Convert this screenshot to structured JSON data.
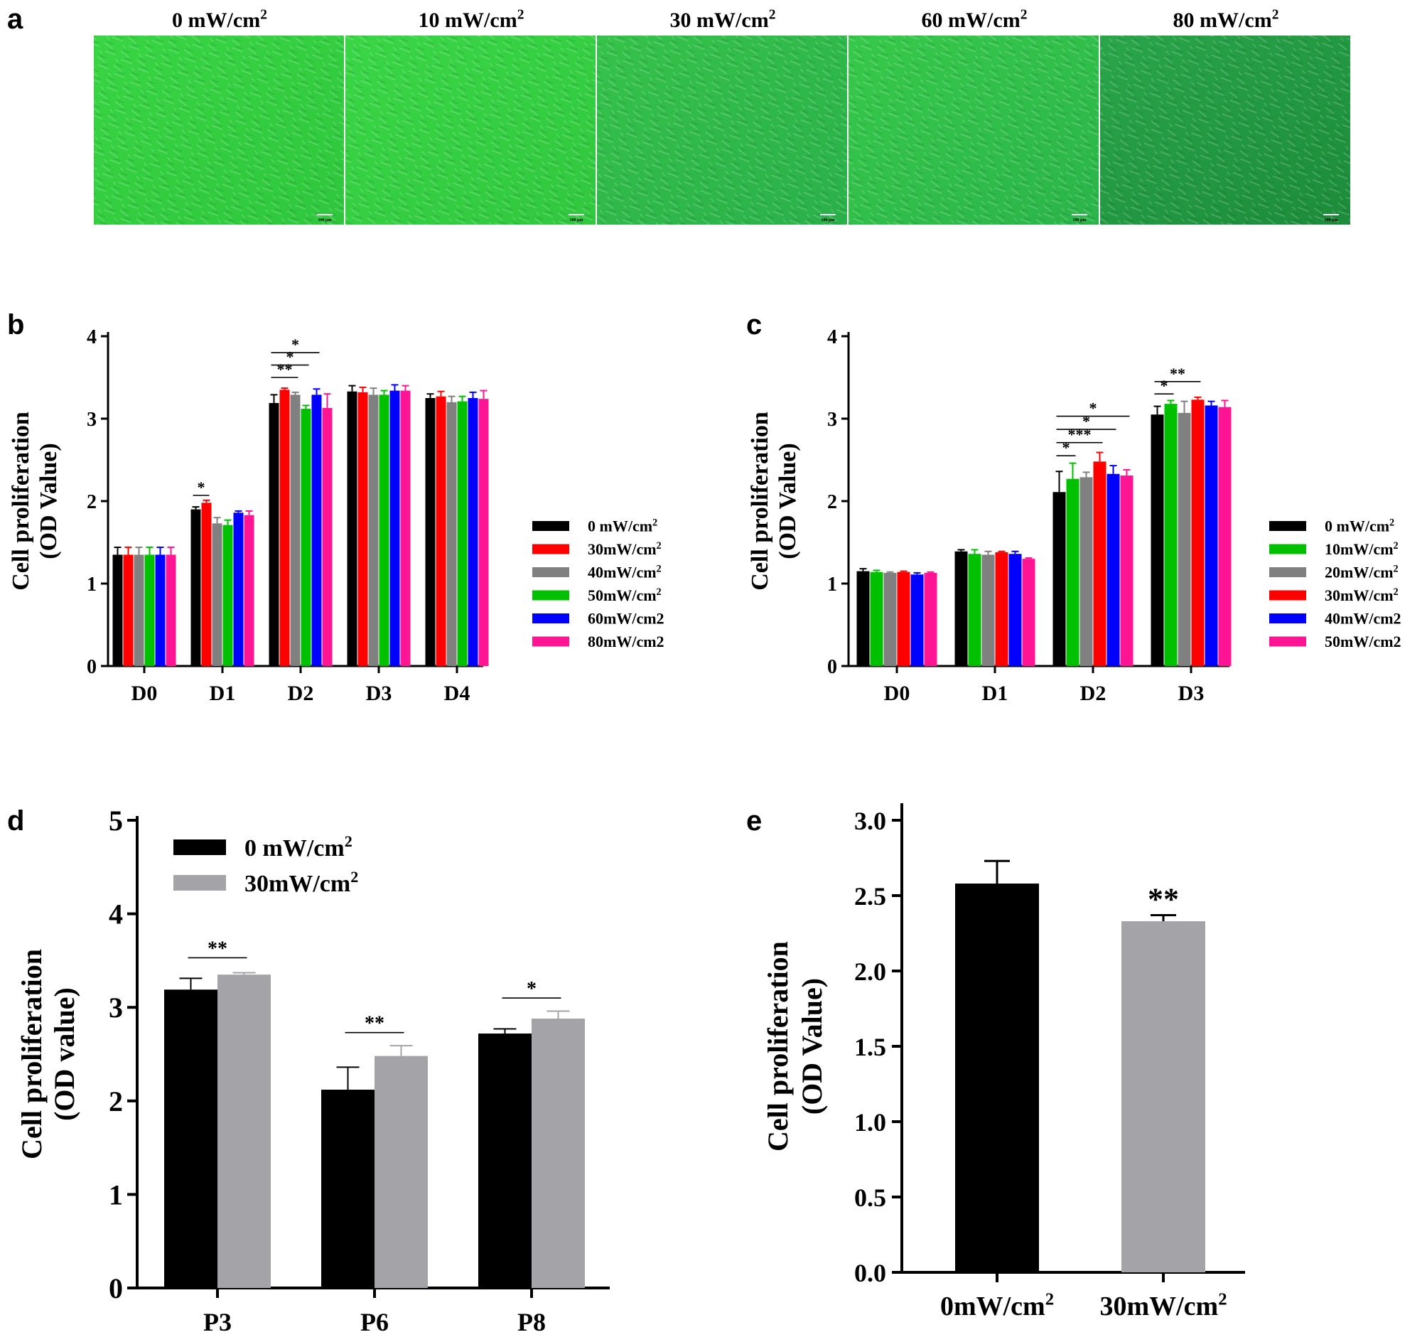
{
  "colors": {
    "black": "#000000",
    "red": "#ff0000",
    "gray": "#808080",
    "green": "#00c000",
    "blue": "#0000ff",
    "pink": "#ff1493",
    "lightgray": "#a3a3a8",
    "micro_green": "#3fd34a",
    "micro_green_dark": "#1e8f36"
  },
  "panel_a": {
    "letter": "a",
    "images": [
      {
        "title": "0 mW/cm",
        "sup": "2",
        "scale_text": "100 μm"
      },
      {
        "title": "10 mW/cm",
        "sup": "2",
        "scale_text": "100 μm"
      },
      {
        "title": "30 mW/cm",
        "sup": "2",
        "scale_text": "100 μm"
      },
      {
        "title": "60 mW/cm",
        "sup": "2",
        "scale_text": "100 μm"
      },
      {
        "title": "80 mW/cm",
        "sup": "2",
        "scale_text": "100 μm"
      }
    ]
  },
  "chart_data": [
    {
      "panel": "b",
      "type": "bar",
      "ylabel": "Cell proliferation",
      "ylabel2": "(OD Value)",
      "ylim": [
        0,
        4
      ],
      "yticks": [
        "0",
        "1",
        "2",
        "3",
        "4"
      ],
      "categories": [
        "D0",
        "D1",
        "D2",
        "D3",
        "D4"
      ],
      "series": [
        {
          "name": "0 mW/cm",
          "sup": "2",
          "color": "#000000",
          "values": [
            1.35,
            1.9,
            3.19,
            3.33,
            3.25
          ],
          "errors": [
            0.09,
            0.03,
            0.1,
            0.07,
            0.05
          ]
        },
        {
          "name": "30mW/cm",
          "sup": "2",
          "color": "#ff0000",
          "values": [
            1.35,
            1.98,
            3.35,
            3.32,
            3.27
          ],
          "errors": [
            0.09,
            0.03,
            0.02,
            0.06,
            0.06
          ]
        },
        {
          "name": "40mW/cm",
          "sup": "2",
          "color": "#808080",
          "values": [
            1.35,
            1.73,
            3.29,
            3.29,
            3.2
          ],
          "errors": [
            0.09,
            0.07,
            0.03,
            0.08,
            0.07
          ]
        },
        {
          "name": "50mW/cm",
          "sup": "2",
          "color": "#00c000",
          "values": [
            1.35,
            1.71,
            3.12,
            3.29,
            3.21
          ],
          "errors": [
            0.09,
            0.06,
            0.04,
            0.05,
            0.06
          ]
        },
        {
          "name": "60mW/cm2",
          "sup": "",
          "color": "#0000ff",
          "values": [
            1.35,
            1.86,
            3.29,
            3.34,
            3.25
          ],
          "errors": [
            0.09,
            0.02,
            0.07,
            0.07,
            0.07
          ]
        },
        {
          "name": "80mW/cm2",
          "sup": "",
          "color": "#ff1493",
          "values": [
            1.35,
            1.83,
            3.13,
            3.34,
            3.24
          ],
          "errors": [
            0.09,
            0.05,
            0.17,
            0.06,
            0.1
          ]
        }
      ],
      "significance": [
        {
          "category": 1,
          "from": 0,
          "to": 1,
          "y": 2.07,
          "label": "*"
        },
        {
          "category": 2,
          "from": 0,
          "to": 2,
          "y": 3.5,
          "label": "**"
        },
        {
          "category": 2,
          "from": 0,
          "to": 3,
          "y": 3.65,
          "label": "*"
        },
        {
          "category": 2,
          "from": 0,
          "to": 4,
          "y": 3.8,
          "label": "*"
        }
      ]
    },
    {
      "panel": "c",
      "type": "bar",
      "ylabel": "Cell proliferation",
      "ylabel2": "(OD Value)",
      "ylim": [
        0,
        4
      ],
      "yticks": [
        "0",
        "1",
        "2",
        "3",
        "4"
      ],
      "categories": [
        "D0",
        "D1",
        "D2",
        "D3"
      ],
      "series": [
        {
          "name": "0 mW/cm",
          "sup": "2",
          "color": "#000000",
          "values": [
            1.15,
            1.39,
            2.11,
            3.05
          ],
          "errors": [
            0.03,
            0.02,
            0.25,
            0.1
          ]
        },
        {
          "name": "10mW/cm",
          "sup": "2",
          "color": "#00c000",
          "values": [
            1.14,
            1.36,
            2.27,
            3.18
          ],
          "errors": [
            0.02,
            0.05,
            0.19,
            0.04
          ]
        },
        {
          "name": "20mW/cm",
          "sup": "2",
          "color": "#808080",
          "values": [
            1.13,
            1.35,
            2.29,
            3.07
          ],
          "errors": [
            0.01,
            0.04,
            0.06,
            0.14
          ]
        },
        {
          "name": "30mW/cm",
          "sup": "2",
          "color": "#ff0000",
          "values": [
            1.14,
            1.38,
            2.48,
            3.23
          ],
          "errors": [
            0.01,
            0.01,
            0.11,
            0.03
          ]
        },
        {
          "name": "40mW/cm2",
          "sup": "",
          "color": "#0000ff",
          "values": [
            1.11,
            1.36,
            2.33,
            3.16
          ],
          "errors": [
            0.02,
            0.03,
            0.1,
            0.05
          ]
        },
        {
          "name": "50mW/cm2",
          "sup": "",
          "color": "#ff1493",
          "values": [
            1.13,
            1.3,
            2.31,
            3.14
          ],
          "errors": [
            0.01,
            0.01,
            0.07,
            0.08
          ]
        }
      ],
      "significance": [
        {
          "category": 2,
          "from": 0,
          "to": 1,
          "y": 2.55,
          "label": "*"
        },
        {
          "category": 2,
          "from": 0,
          "to": 3,
          "y": 2.71,
          "label": "***"
        },
        {
          "category": 2,
          "from": 0,
          "to": 4,
          "y": 2.87,
          "label": "*"
        },
        {
          "category": 2,
          "from": 0,
          "to": 5,
          "y": 3.03,
          "label": "*"
        },
        {
          "category": 3,
          "from": 0,
          "to": 1,
          "y": 3.3,
          "label": "*"
        },
        {
          "category": 3,
          "from": 0,
          "to": 3,
          "y": 3.45,
          "label": "**"
        }
      ]
    },
    {
      "panel": "d",
      "type": "bar",
      "ylabel": "Cell proliferation",
      "ylabel2": "(OD value)",
      "ylim": [
        0,
        5
      ],
      "yticks": [
        "0",
        "1",
        "2",
        "3",
        "4",
        "5"
      ],
      "categories": [
        "P3",
        "P6",
        "P8"
      ],
      "series": [
        {
          "name": "0 mW/cm",
          "sup": "2",
          "color": "#000000",
          "values": [
            3.19,
            2.12,
            2.72
          ],
          "errors": [
            0.12,
            0.24,
            0.05
          ]
        },
        {
          "name": "30mW/cm",
          "sup": "2",
          "color": "#a3a3a8",
          "values": [
            3.35,
            2.48,
            2.88
          ],
          "errors": [
            0.02,
            0.11,
            0.08
          ]
        }
      ],
      "significance": [
        {
          "category": 0,
          "from": 0,
          "to": 1,
          "y": 3.53,
          "label": "**"
        },
        {
          "category": 1,
          "from": 0,
          "to": 1,
          "y": 2.73,
          "label": "**"
        },
        {
          "category": 2,
          "from": 0,
          "to": 1,
          "y": 3.1,
          "label": "*"
        }
      ]
    },
    {
      "panel": "e",
      "type": "bar",
      "ylabel": "Cell proliferation",
      "ylabel2": "(OD Value)",
      "ylim": [
        0,
        3
      ],
      "yticks": [
        "0.0",
        "0.5",
        "1.0",
        "1.5",
        "2.0",
        "2.5",
        "3.0"
      ],
      "categories": [
        {
          "label": "0mW/cm",
          "sup": "2"
        },
        {
          "label": "30mW/cm",
          "sup": "2"
        }
      ],
      "values": [
        2.58,
        2.33
      ],
      "errors": [
        0.15,
        0.04
      ],
      "colors": [
        "#000000",
        "#a3a3a8"
      ],
      "significance_label": "**"
    }
  ]
}
